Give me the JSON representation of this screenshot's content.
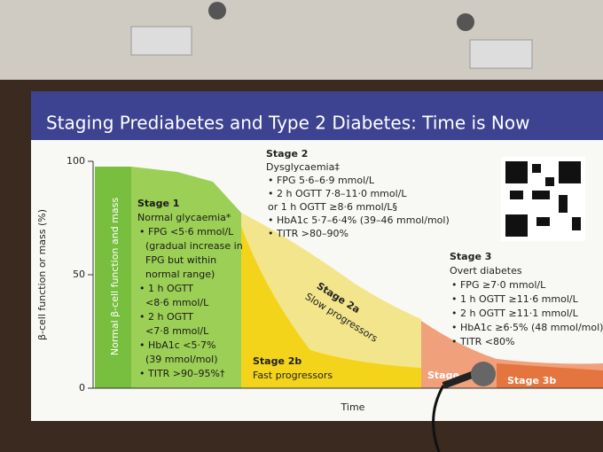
{
  "slide": {
    "title": "Staging Prediabetes and Type 2 Diabetes: Time is Now",
    "y_axis_label": "β-cell function or mass (%)",
    "x_axis_label": "Time",
    "yticks": [
      0,
      50,
      100
    ],
    "normal_label": "Normal β-cell function and mass",
    "stage1": {
      "heading": "Stage 1",
      "subtitle": "Normal glycaemia*",
      "bullets": [
        "• FPG <5·6 mmol/L",
        "  (gradual increase in",
        "  FPG but within",
        "  normal range)",
        "• 1 h OGTT",
        "  <8·6 mmol/L",
        "• 2 h OGTT",
        "  <7·8 mmol/L",
        "• HbA1c <5·7%",
        "  (39 mmol/mol)",
        "• TITR >90–95%†"
      ]
    },
    "stage2": {
      "heading": "Stage 2",
      "subtitle": "Dysglycaemia‡",
      "bullets": [
        "• FPG 5·6–6·9 mmol/L",
        "• 2 h OGTT 7·8–11·0 mmol/L",
        "or 1 h OGTT ≥8·6 mmol/L§",
        "• HbA1c 5·7–6·4% (39–46 mmol/mol)",
        "• TITR >80–90%"
      ]
    },
    "stage2a": {
      "heading": "Stage 2a",
      "subtitle": "Slow progressors"
    },
    "stage2b": {
      "heading": "Stage 2b",
      "subtitle": "Fast progressors"
    },
    "stage3": {
      "heading": "Stage 3",
      "subtitle": "Overt diabetes",
      "bullets": [
        "• FPG ≥7·0 mmol/L",
        "• 1 h OGTT ≥11·6 mmol/L",
        "• 2 h OGTT ≥11·1 mmol/L",
        "• HbA1c ≥6·5% (48 mmol/mol)",
        "• TITR <80%"
      ]
    },
    "stage3a": "Stage",
    "stage3b": "Stage 3b"
  }
}
